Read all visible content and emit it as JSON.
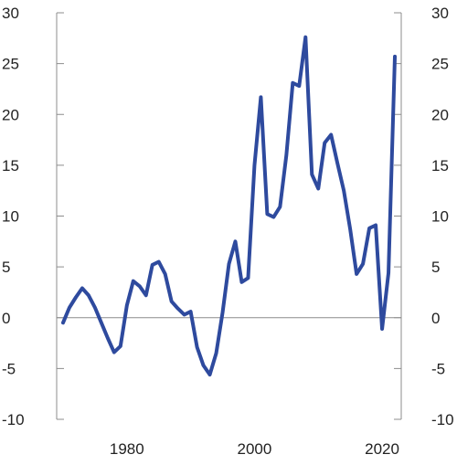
{
  "chart_data": {
    "type": "line",
    "x_ticks": [
      1980,
      2000,
      2020
    ],
    "y_ticks": [
      -10,
      -5,
      0,
      5,
      10,
      15,
      20,
      25,
      30
    ],
    "xlim": [
      1969,
      2023
    ],
    "ylim": [
      -10,
      30
    ],
    "grid": false,
    "colors": {
      "series": "#2e4a9e",
      "axis": "#8c8c8c"
    },
    "series": [
      {
        "x": [
          1970,
          1971,
          1972,
          1973,
          1974,
          1975,
          1976,
          1977,
          1978,
          1979,
          1980,
          1981,
          1982,
          1983,
          1984,
          1985,
          1986,
          1987,
          1988,
          1989,
          1990,
          1991,
          1992,
          1993,
          1994,
          1995,
          1996,
          1997,
          1998,
          1999,
          2000,
          2001,
          2002,
          2003,
          2004,
          2005,
          2006,
          2007,
          2008,
          2009,
          2010,
          2011,
          2012,
          2013,
          2014,
          2015,
          2016,
          2017,
          2018,
          2019,
          2020,
          2021,
          2022
        ],
        "y": [
          -0.5,
          1.0,
          2.0,
          2.9,
          2.2,
          1.0,
          -0.5,
          -2.0,
          -3.4,
          -2.8,
          1.2,
          3.6,
          3.1,
          2.2,
          5.2,
          5.5,
          4.3,
          1.6,
          0.9,
          0.3,
          0.6,
          -2.9,
          -4.7,
          -5.6,
          -3.5,
          0.5,
          5.3,
          7.5,
          3.5,
          3.9,
          15.0,
          21.7,
          10.2,
          9.9,
          10.9,
          16.0,
          23.1,
          22.8,
          27.6,
          14.1,
          12.7,
          17.2,
          18.0,
          15.2,
          12.5,
          8.7,
          4.3,
          5.3,
          8.8,
          9.1,
          -1.1,
          4.4,
          25.7
        ]
      }
    ]
  }
}
